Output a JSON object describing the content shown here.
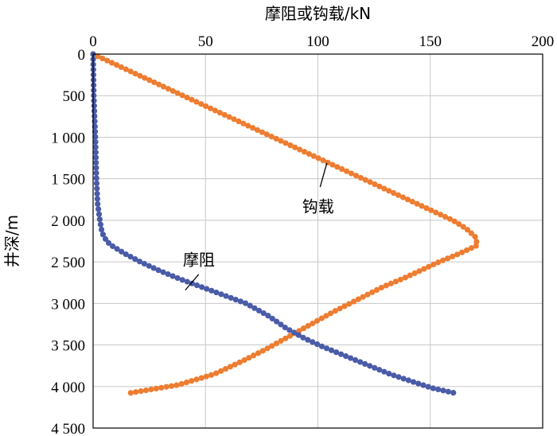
{
  "chart_data": {
    "type": "line",
    "x_axis_title": "摩阻或钩载/kN",
    "y_axis_title": "井深/m",
    "x_ticks": [
      "0",
      "50",
      "100",
      "150",
      "200"
    ],
    "y_ticks": [
      "0",
      "500",
      "1 000",
      "1 500",
      "2 000",
      "2 500",
      "3 000",
      "3 500",
      "4 000",
      "4 500"
    ],
    "xlim": [
      0,
      200
    ],
    "ylim": [
      0,
      4500
    ],
    "y_inverted": true,
    "x_axis_position": "top",
    "grid": true,
    "annotations": [
      {
        "text": "钩载",
        "series": "hookload"
      },
      {
        "text": "摩阻",
        "series": "friction"
      }
    ],
    "series": [
      {
        "key": "hookload",
        "color": "#ED7D31",
        "marker": "circle",
        "points": [
          [
            0,
            0
          ],
          [
            8,
            100
          ],
          [
            16,
            200
          ],
          [
            24,
            300
          ],
          [
            32,
            400
          ],
          [
            40,
            500
          ],
          [
            48,
            600
          ],
          [
            56,
            700
          ],
          [
            64,
            800
          ],
          [
            72,
            900
          ],
          [
            80,
            1000
          ],
          [
            88,
            1100
          ],
          [
            96,
            1200
          ],
          [
            104,
            1300
          ],
          [
            112,
            1400
          ],
          [
            120,
            1500
          ],
          [
            128,
            1600
          ],
          [
            136,
            1700
          ],
          [
            144,
            1800
          ],
          [
            152,
            1900
          ],
          [
            160,
            2000
          ],
          [
            166,
            2100
          ],
          [
            170,
            2200
          ],
          [
            171,
            2300
          ],
          [
            163,
            2400
          ],
          [
            154,
            2500
          ],
          [
            146,
            2600
          ],
          [
            138,
            2700
          ],
          [
            129,
            2800
          ],
          [
            118,
            2950
          ],
          [
            107,
            3100
          ],
          [
            97,
            3250
          ],
          [
            87,
            3400
          ],
          [
            77,
            3550
          ],
          [
            66,
            3700
          ],
          [
            54,
            3850
          ],
          [
            38,
            3980
          ],
          [
            16,
            4080
          ]
        ]
      },
      {
        "key": "friction",
        "color": "#4A5BA8",
        "marker": "circle",
        "points": [
          [
            0,
            0
          ],
          [
            0.3,
            500
          ],
          [
            1,
            1000
          ],
          [
            1.5,
            1500
          ],
          [
            2,
            1800
          ],
          [
            3,
            2000
          ],
          [
            4,
            2150
          ],
          [
            6,
            2250
          ],
          [
            8,
            2300
          ],
          [
            14,
            2400
          ],
          [
            21,
            2500
          ],
          [
            29,
            2600
          ],
          [
            38,
            2700
          ],
          [
            48,
            2800
          ],
          [
            58,
            2900
          ],
          [
            68,
            3000
          ],
          [
            78,
            3150
          ],
          [
            86,
            3300
          ],
          [
            94,
            3420
          ],
          [
            102,
            3520
          ],
          [
            112,
            3630
          ],
          [
            122,
            3740
          ],
          [
            132,
            3850
          ],
          [
            143,
            3950
          ],
          [
            151,
            4020
          ],
          [
            161,
            4080
          ]
        ]
      }
    ]
  }
}
